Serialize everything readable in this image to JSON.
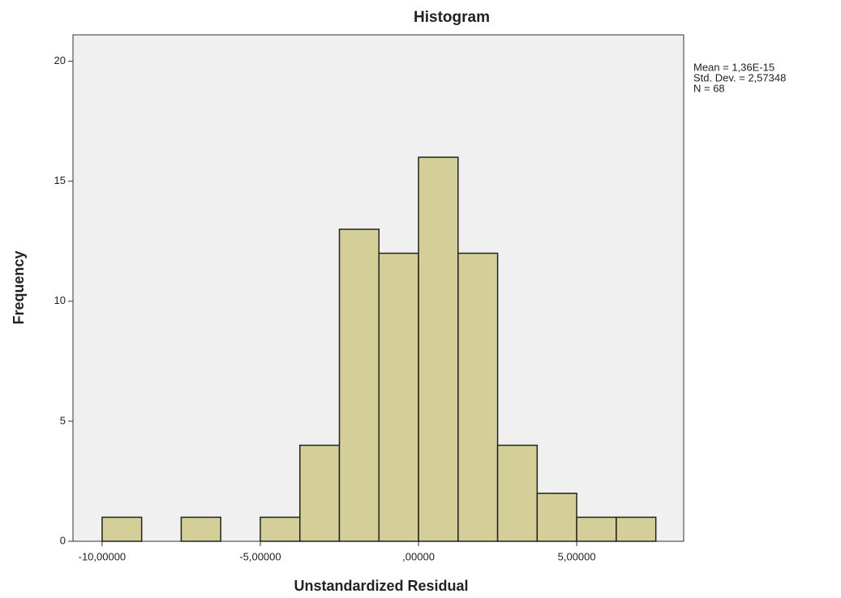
{
  "chart_data": {
    "type": "histogram",
    "title": "Histogram",
    "x_label": "Unstandardized Residual",
    "y_label": "Frequency",
    "bins": [
      -10,
      -8.75,
      -7.5,
      -6.25,
      -5,
      -3.75,
      -2.5,
      -1.25,
      0,
      1.25,
      2.5,
      3.75,
      5,
      6.25,
      7.5
    ],
    "counts": [
      1,
      0,
      1,
      0,
      1,
      4,
      13,
      12,
      16,
      12,
      4,
      2,
      1,
      1
    ],
    "color": "#d4cf98",
    "xlim": [
      -10.92,
      8.38
    ],
    "ylim": [
      0,
      21.1
    ],
    "xticks": [
      {
        "value": -10,
        "label": "-10,00000"
      },
      {
        "value": -5,
        "label": "-5,00000"
      },
      {
        "value": 0,
        "label": ",00000"
      },
      {
        "value": 5,
        "label": "5,00000"
      }
    ],
    "yticks": [
      0,
      5,
      10,
      15,
      20
    ],
    "annotations": [
      "Mean = 1,36E-15",
      "Std. Dev. = 2,57348",
      "N = 68"
    ]
  }
}
